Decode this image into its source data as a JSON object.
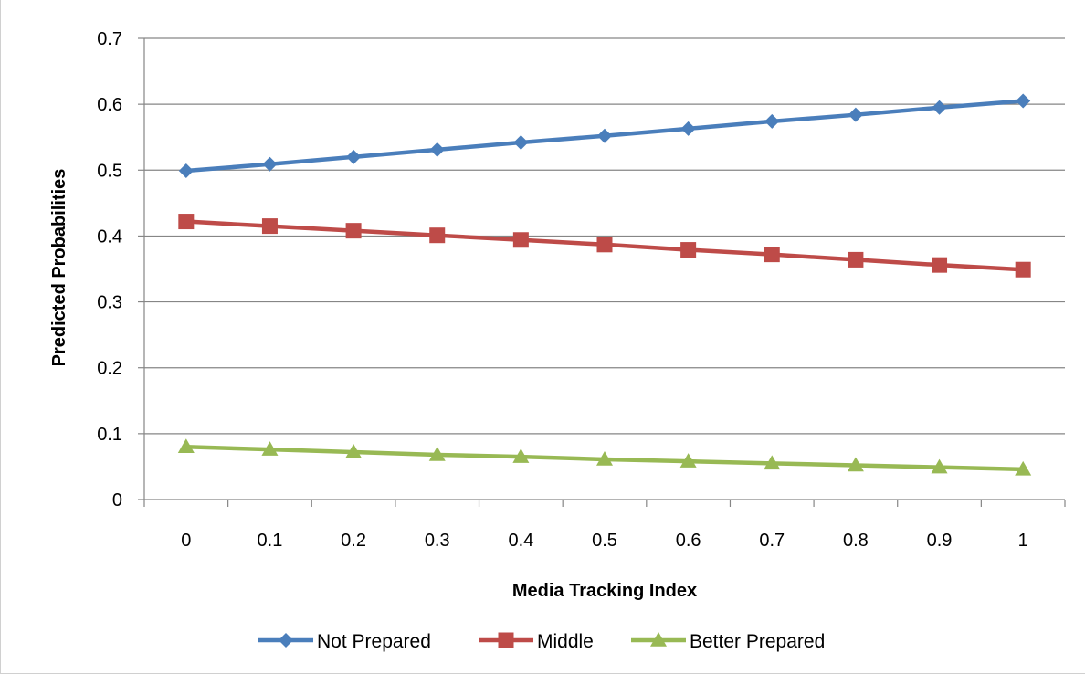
{
  "chart_data": {
    "type": "line",
    "title": "",
    "xlabel": "Media Tracking Index",
    "ylabel": "Predicted Probabilities",
    "categories": [
      "0",
      "0.1",
      "0.2",
      "0.3",
      "0.4",
      "0.5",
      "0.6",
      "0.7",
      "0.8",
      "0.9",
      "1"
    ],
    "ylim": [
      0,
      0.7
    ],
    "yticks": [
      0,
      0.1,
      0.2,
      0.3,
      0.4,
      0.5,
      0.6,
      0.7
    ],
    "ytick_labels": [
      "0",
      "0.1",
      "0.2",
      "0.3",
      "0.4",
      "0.5",
      "0.6",
      "0.7"
    ],
    "grid": "horizontal",
    "legend_position": "bottom",
    "series": [
      {
        "name": "Not Prepared",
        "color": "#4a7ebb",
        "marker": "diamond",
        "values": [
          0.499,
          0.509,
          0.52,
          0.531,
          0.542,
          0.552,
          0.563,
          0.574,
          0.584,
          0.595,
          0.605
        ]
      },
      {
        "name": "Middle",
        "color": "#be4b48",
        "marker": "square",
        "values": [
          0.422,
          0.415,
          0.408,
          0.401,
          0.394,
          0.387,
          0.379,
          0.372,
          0.364,
          0.356,
          0.349
        ]
      },
      {
        "name": "Better Prepared",
        "color": "#98b954",
        "marker": "triangle",
        "values": [
          0.08,
          0.076,
          0.072,
          0.068,
          0.065,
          0.061,
          0.058,
          0.055,
          0.052,
          0.049,
          0.046
        ]
      }
    ]
  }
}
